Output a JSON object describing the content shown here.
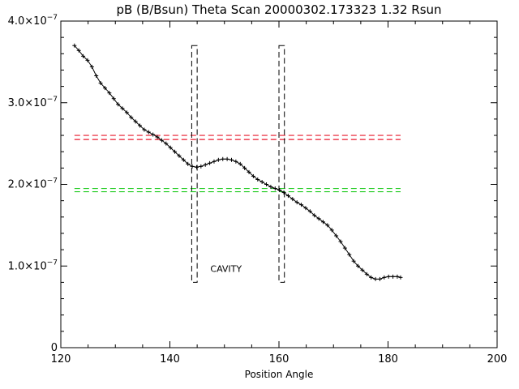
{
  "chart_data": {
    "type": "scatter",
    "title": "pB (B/Bsun) Theta Scan 20000302.173323 1.32 Rsun",
    "xlabel": "Position Angle",
    "ylabel": "",
    "xlim": [
      120,
      200
    ],
    "ylim": [
      0,
      4e-07
    ],
    "x_ticks": [
      120,
      140,
      160,
      180,
      200
    ],
    "y_ticks": [
      {
        "value": 0,
        "label": "0"
      },
      {
        "value": 1e-07,
        "mantissa": "1.0×10",
        "exponent": "−7"
      },
      {
        "value": 2e-07,
        "mantissa": "2.0×10",
        "exponent": "−7"
      },
      {
        "value": 3e-07,
        "mantissa": "3.0×10",
        "exponent": "−7"
      },
      {
        "value": 4e-07,
        "mantissa": "4.0×10",
        "exponent": "−7"
      }
    ],
    "grid": false,
    "series": [
      {
        "style": "points-with-smooth-line",
        "color": "#000000",
        "x": [
          122.5,
          123.3,
          124.1,
          124.9,
          125.7,
          126.5,
          127.3,
          128.1,
          128.9,
          129.7,
          130.5,
          131.3,
          132.1,
          132.9,
          133.7,
          134.5,
          135.3,
          136.1,
          136.9,
          137.7,
          138.5,
          139.3,
          140.1,
          140.9,
          141.7,
          142.5,
          143.3,
          144.1,
          144.9,
          145.7,
          146.5,
          147.3,
          148.1,
          148.9,
          149.7,
          150.5,
          151.3,
          152.1,
          152.9,
          153.7,
          154.5,
          155.3,
          156.1,
          156.9,
          157.7,
          158.5,
          159.3,
          160.1,
          160.9,
          161.7,
          162.5,
          163.3,
          164.1,
          164.9,
          165.7,
          166.5,
          167.3,
          168.1,
          168.9,
          169.7,
          170.5,
          171.3,
          172.1,
          172.9,
          173.7,
          174.5,
          175.3,
          176.1,
          176.9,
          177.7,
          178.5,
          179.3,
          180.1,
          180.9,
          181.7,
          182.3
        ],
        "y": [
          3.7e-07,
          3.64e-07,
          3.57e-07,
          3.52e-07,
          3.44e-07,
          3.33e-07,
          3.24e-07,
          3.18e-07,
          3.12e-07,
          3.05e-07,
          2.98e-07,
          2.93e-07,
          2.88e-07,
          2.82e-07,
          2.77e-07,
          2.72e-07,
          2.67e-07,
          2.64e-07,
          2.61e-07,
          2.58e-07,
          2.54e-07,
          2.5e-07,
          2.45e-07,
          2.4e-07,
          2.35e-07,
          2.3e-07,
          2.25e-07,
          2.22e-07,
          2.21e-07,
          2.22e-07,
          2.24e-07,
          2.26e-07,
          2.28e-07,
          2.3e-07,
          2.31e-07,
          2.31e-07,
          2.3e-07,
          2.28e-07,
          2.25e-07,
          2.2e-07,
          2.15e-07,
          2.1e-07,
          2.06e-07,
          2.03e-07,
          2e-07,
          1.97e-07,
          1.95e-07,
          1.93e-07,
          1.9e-07,
          1.86e-07,
          1.82e-07,
          1.78e-07,
          1.75e-07,
          1.71e-07,
          1.67e-07,
          1.62e-07,
          1.58e-07,
          1.54e-07,
          1.5e-07,
          1.44e-07,
          1.37e-07,
          1.3e-07,
          1.22e-07,
          1.14e-07,
          1.06e-07,
          1e-07,
          9.5e-08,
          9e-08,
          8.6e-08,
          8.4e-08,
          8.4e-08,
          8.6e-08,
          8.7e-08,
          8.7e-08,
          8.7e-08,
          8.6e-08
        ]
      }
    ],
    "reference_lines": [
      {
        "color": "#e8192c",
        "dash": true,
        "y": [
          2.6e-07,
          2.55e-07
        ],
        "x": [
          122.5,
          182.3
        ]
      },
      {
        "color": "#22cc22",
        "dash": true,
        "y": [
          1.95e-07,
          1.91e-07
        ],
        "x": [
          122.5,
          182.3
        ]
      }
    ],
    "boxes": [
      {
        "color": "#000000",
        "dash": true,
        "x": [
          144.0,
          145.0
        ],
        "y": [
          8e-08,
          3.7e-07
        ]
      },
      {
        "color": "#000000",
        "dash": true,
        "x": [
          160.0,
          161.0
        ],
        "y": [
          8e-08,
          3.7e-07
        ]
      }
    ],
    "annotations": [
      {
        "text": "CAVITY",
        "color": "#e8192c",
        "x": 150.3,
        "y": 9.3e-08
      }
    ]
  }
}
